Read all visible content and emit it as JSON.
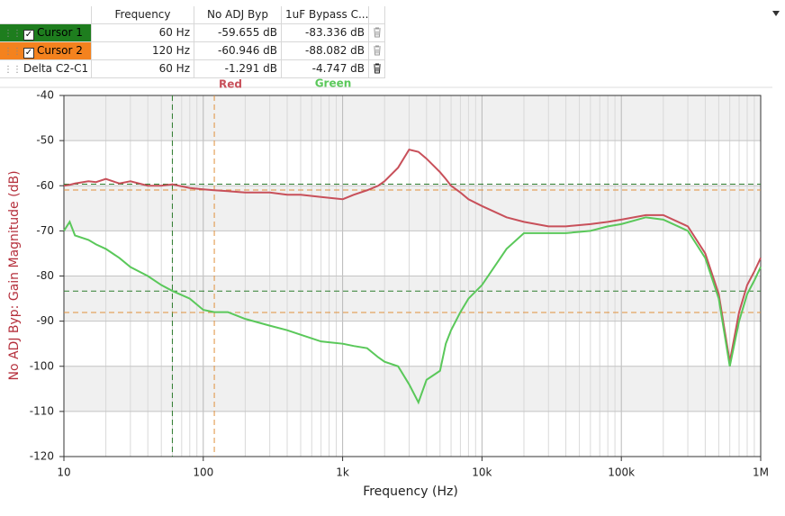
{
  "table": {
    "columns": [
      "Frequency",
      "No ADJ Byp",
      "1uF Bypass C..."
    ],
    "rows": [
      {
        "name": "Cursor 1",
        "checked": true,
        "color": "#1e7d1e",
        "cells": [
          "60 Hz",
          "-59.655 dB",
          "-83.336 dB"
        ]
      },
      {
        "name": "Cursor 2",
        "checked": true,
        "color": "#f4821e",
        "cells": [
          "120 Hz",
          "-60.946 dB",
          "-88.082 dB"
        ]
      },
      {
        "name": "Delta C2-C1",
        "checked": false,
        "color": "#ffffff",
        "cells": [
          "60 Hz",
          "-1.291 dB",
          "-4.747 dB"
        ]
      }
    ]
  },
  "chart_data": {
    "type": "line",
    "xlabel": "Frequency (Hz)",
    "ylabel": "No ADJ Byp: Gain Magnitude (dB)",
    "xscale": "log",
    "x": [
      10,
      11,
      12,
      15,
      17,
      20,
      25,
      30,
      40,
      50,
      60,
      80,
      100,
      120,
      150,
      200,
      300,
      400,
      500,
      700,
      1000,
      1200,
      1500,
      1800,
      2000,
      2500,
      3000,
      3500,
      4000,
      5000,
      5500,
      6000,
      7000,
      8000,
      10000,
      15000,
      20000,
      30000,
      40000,
      60000,
      80000,
      100000,
      150000,
      200000,
      300000,
      400000,
      500000,
      600000,
      700000,
      800000,
      900000,
      1000000
    ],
    "series": [
      {
        "name": "Red",
        "color": "#c8505a",
        "values": [
          -60,
          -59.8,
          -59.5,
          -59,
          -59.2,
          -58.5,
          -59.5,
          -59,
          -60,
          -60,
          -59.7,
          -60.5,
          -60.8,
          -61,
          -61.2,
          -61.5,
          -61.5,
          -62,
          -62,
          -62.5,
          -63,
          -62,
          -61,
          -60,
          -59,
          -56,
          -52,
          -52.5,
          -54,
          -57,
          -58.5,
          -60,
          -61.5,
          -63,
          -64.5,
          -67,
          -68,
          -69,
          -69,
          -68.5,
          -68,
          -67.5,
          -66.5,
          -66.5,
          -69,
          -75,
          -84,
          -99,
          -88,
          -82,
          -79,
          -76
        ]
      },
      {
        "name": "Green",
        "color": "#5ac85a",
        "values": [
          -70,
          -68,
          -71,
          -72,
          -73,
          -74,
          -76,
          -78,
          -80,
          -82,
          -83.3,
          -85,
          -87.5,
          -88,
          -88,
          -89.5,
          -91,
          -92,
          -93,
          -94.5,
          -95,
          -95.5,
          -96,
          -98,
          -99,
          -100,
          -104,
          -108,
          -103,
          -101,
          -95,
          -92,
          -88,
          -85,
          -82,
          -74,
          -70.5,
          -70.5,
          -70.5,
          -70,
          -69,
          -68.5,
          -67,
          -67.5,
          -70,
          -76,
          -85,
          -100,
          -90,
          -84,
          -81,
          -78
        ]
      }
    ],
    "xlim": [
      10,
      1000000
    ],
    "ylim": [
      -120,
      -40
    ],
    "xticks": [
      10,
      100,
      {
        "value": 1000,
        "label": "1k"
      },
      {
        "value": 10000,
        "label": "10k"
      },
      {
        "value": 100000,
        "label": "100k"
      },
      {
        "value": 1000000,
        "label": "1M"
      }
    ],
    "minor_xticks": [
      20,
      30,
      40,
      50,
      60,
      70,
      80,
      90,
      200,
      300,
      400,
      500,
      600,
      700,
      800,
      900,
      2000,
      3000,
      4000,
      5000,
      6000,
      7000,
      8000,
      9000,
      20000,
      30000,
      40000,
      50000,
      60000,
      70000,
      80000,
      90000,
      200000,
      300000,
      400000,
      500000,
      600000,
      700000,
      800000,
      900000
    ],
    "yticks": [
      -120,
      -110,
      -100,
      -90,
      -80,
      -70,
      -60,
      -50,
      -40
    ],
    "grid": true,
    "cursors": [
      {
        "x": 60,
        "y": [
          -59.655,
          -83.336
        ],
        "color": "#2e7d2e"
      },
      {
        "x": 120,
        "y": [
          -60.946,
          -88.082
        ],
        "color": "#e0903c"
      }
    ]
  }
}
